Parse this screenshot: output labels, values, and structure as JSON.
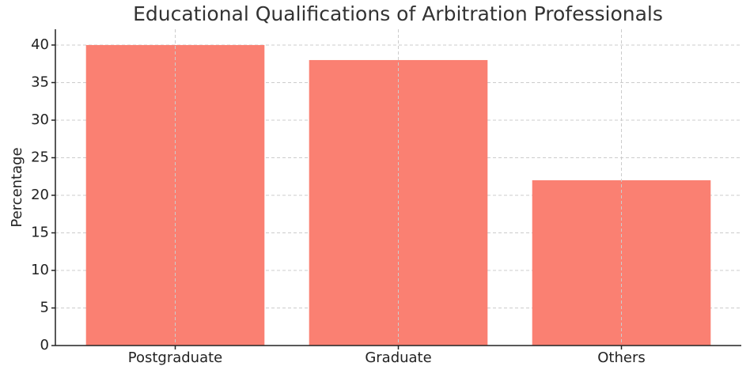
{
  "chart_data": {
    "type": "bar",
    "title": "Educational Qualifications of Arbitration Professionals",
    "y_label": "Percentage",
    "categories": [
      "Postgraduate",
      "Graduate",
      "Others"
    ],
    "values": [
      40,
      38,
      22
    ],
    "color": "#fa8072",
    "ylim": [
      0,
      42.1
    ],
    "yticks": [
      0,
      5,
      10,
      15,
      20,
      25,
      30,
      35,
      40
    ],
    "grid": true
  }
}
